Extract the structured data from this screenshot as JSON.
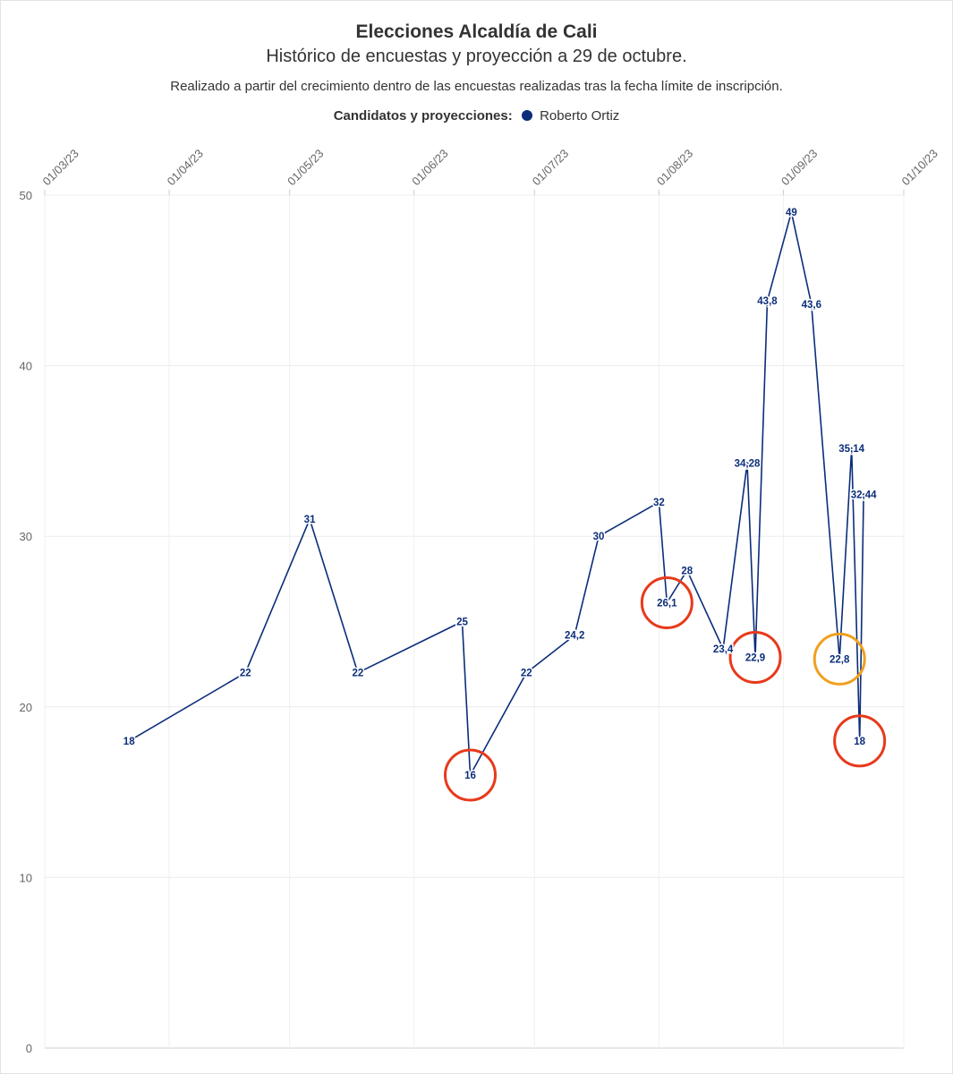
{
  "title": "Elecciones Alcaldía de Cali",
  "subtitle": "Histórico de encuestas y proyección a 29 de octubre.",
  "note": "Realizado a partir del crecimiento dentro de las encuestas realizadas tras la fecha límite de inscripción.",
  "legend": {
    "title": "Candidatos y proyecciones:",
    "items": [
      {
        "name": "Roberto Ortiz",
        "color": "#0b2d7a"
      }
    ]
  },
  "chart_data": {
    "type": "line",
    "x_axis": {
      "type": "date",
      "position": "top",
      "range": [
        "2023-03-01",
        "2023-10-01"
      ],
      "ticks": [
        "01/03/23",
        "01/04/23",
        "01/05/23",
        "01/06/23",
        "01/07/23",
        "01/08/23",
        "01/09/23",
        "01/10/23"
      ]
    },
    "y_axis": {
      "range": [
        0,
        50
      ],
      "ticks": [
        0,
        10,
        20,
        30,
        40,
        50
      ]
    },
    "grid": true,
    "legend_position": "top",
    "series": [
      {
        "name": "Roberto Ortiz",
        "color": "#0b2d7a",
        "points": [
          {
            "x": "2023-03-22",
            "y": 18,
            "label": "18"
          },
          {
            "x": "2023-04-20",
            "y": 22,
            "label": "22"
          },
          {
            "x": "2023-05-06",
            "y": 31,
            "label": "31"
          },
          {
            "x": "2023-05-18",
            "y": 22,
            "label": "22"
          },
          {
            "x": "2023-06-13",
            "y": 25,
            "label": "25"
          },
          {
            "x": "2023-06-15",
            "y": 16,
            "label": "16"
          },
          {
            "x": "2023-06-29",
            "y": 22,
            "label": "22"
          },
          {
            "x": "2023-07-11",
            "y": 24.2,
            "label": "24,2"
          },
          {
            "x": "2023-07-17",
            "y": 30,
            "label": "30"
          },
          {
            "x": "2023-08-01",
            "y": 32,
            "label": "32"
          },
          {
            "x": "2023-08-03",
            "y": 26.1,
            "label": "26,1"
          },
          {
            "x": "2023-08-08",
            "y": 28,
            "label": "28"
          },
          {
            "x": "2023-08-17",
            "y": 23.4,
            "label": "23,4"
          },
          {
            "x": "2023-08-23",
            "y": 34.28,
            "label": "34,28"
          },
          {
            "x": "2023-08-25",
            "y": 22.9,
            "label": "22,9"
          },
          {
            "x": "2023-08-28",
            "y": 43.8,
            "label": "43,8"
          },
          {
            "x": "2023-09-03",
            "y": 49,
            "label": "49"
          },
          {
            "x": "2023-09-08",
            "y": 43.6,
            "label": "43,6"
          },
          {
            "x": "2023-09-15",
            "y": 22.8,
            "label": "22,8"
          },
          {
            "x": "2023-09-18",
            "y": 35.14,
            "label": "35,14"
          },
          {
            "x": "2023-09-20",
            "y": 18,
            "label": "18"
          },
          {
            "x": "2023-09-21",
            "y": 32.44,
            "label": "32,44"
          }
        ]
      }
    ],
    "annotations": [
      {
        "type": "circle",
        "at_point": 5,
        "color": "#e8391c"
      },
      {
        "type": "circle",
        "at_point": 10,
        "color": "#e8391c"
      },
      {
        "type": "circle",
        "at_point": 14,
        "color": "#e8391c"
      },
      {
        "type": "circle",
        "at_point": 18,
        "color": "#f0a020"
      },
      {
        "type": "circle",
        "at_point": 20,
        "color": "#e8391c"
      }
    ]
  }
}
